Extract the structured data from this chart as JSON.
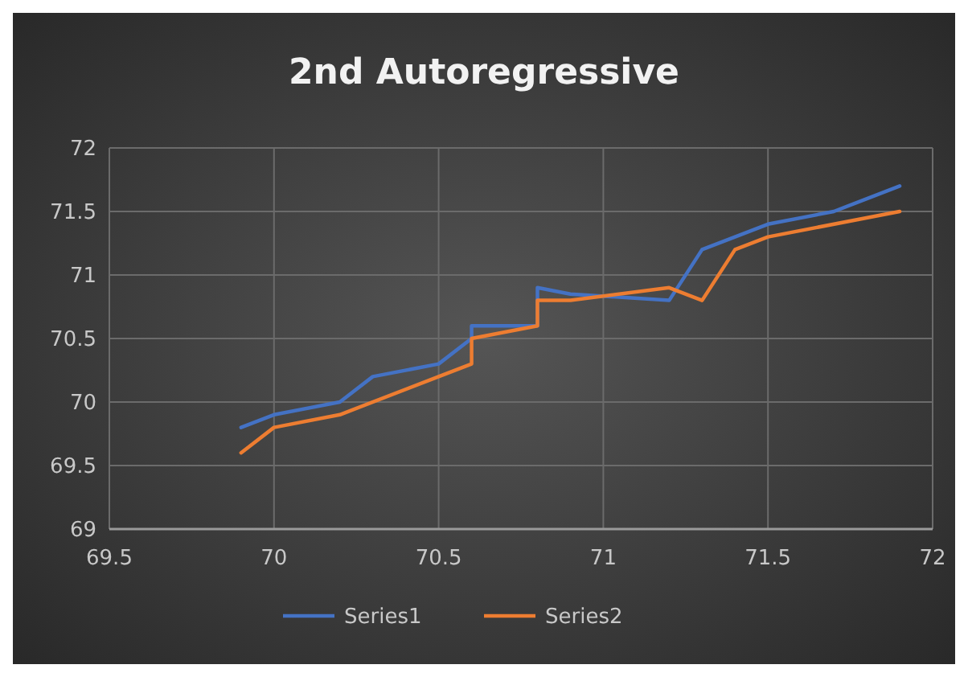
{
  "chart_data": {
    "type": "line",
    "title": "2nd Autoregressive",
    "series": [
      {
        "name": "Series1",
        "color": "#4472c4",
        "x": [
          69.9,
          70,
          70.2,
          70.3,
          70.5,
          70.6,
          70.6,
          70.8,
          70.8,
          70.9,
          71.2,
          71.3,
          71.5,
          71.7,
          71.9
        ],
        "values": [
          69.8,
          69.9,
          70,
          70.2,
          70.3,
          70.5,
          70.6,
          70.6,
          70.9,
          70.85,
          70.8,
          71.2,
          71.4,
          71.5,
          71.7
        ]
      },
      {
        "name": "Series2",
        "color": "#ed7d31",
        "x": [
          69.9,
          70,
          70.2,
          70.5,
          70.6,
          70.6,
          70.8,
          70.8,
          70.9,
          71.2,
          71.3,
          71.4,
          71.5,
          71.9
        ],
        "values": [
          69.6,
          69.8,
          69.9,
          70.2,
          70.3,
          70.5,
          70.6,
          70.8,
          70.8,
          70.9,
          70.8,
          71.2,
          71.3,
          71.5
        ]
      }
    ],
    "xlim": [
      69.5,
      72
    ],
    "xticks": [
      69.5,
      70,
      70.5,
      71,
      71.5,
      72
    ],
    "ylim": [
      69,
      72
    ],
    "yticks": [
      69,
      69.5,
      70,
      70.5,
      71,
      71.5,
      72
    ],
    "grid": true,
    "legend": "bottom",
    "marker": "none",
    "line_style": "solid"
  }
}
